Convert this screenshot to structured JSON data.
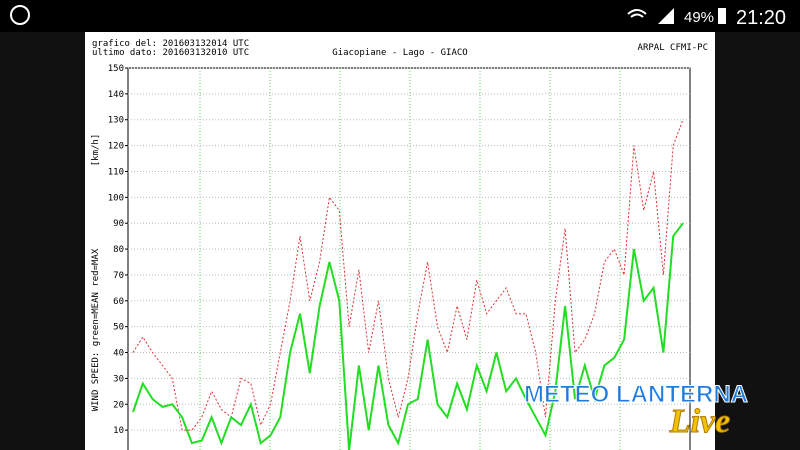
{
  "status_bar": {
    "battery": "49%",
    "time": "21:20"
  },
  "chart_header": {
    "plotted": "grafico del: 201603132014 UTC",
    "last_data": "ultimo dato: 201603132010 UTC",
    "source": "ARPAL CFMI-PC"
  },
  "watermark": {
    "brand": "METEO LANTERNA",
    "tag": "Live"
  },
  "chart_data": {
    "type": "line",
    "title": "Giacopiane - Lago - GIACO",
    "y_unit": "[km/h]",
    "y_label": "WIND SPEED: green=MEAN red=MAX",
    "categories": [
      null,
      null,
      null,
      null,
      null,
      null,
      null,
      null,
      null,
      null,
      null,
      null,
      null,
      null,
      null,
      null,
      null,
      null,
      null,
      null,
      null,
      null,
      null,
      null,
      null,
      null,
      null,
      null,
      null,
      null,
      null,
      null,
      null,
      null,
      null,
      null,
      null,
      null,
      null,
      null,
      null,
      null,
      null,
      null,
      null,
      null,
      null,
      null,
      null,
      null,
      null,
      null,
      null,
      null,
      null,
      null,
      null
    ],
    "series": [
      {
        "name": "MAX",
        "color": "#e03030",
        "dashed": true,
        "values": [
          40,
          46,
          40,
          35,
          30,
          10,
          10,
          15,
          25,
          18,
          15,
          30,
          28,
          12,
          20,
          40,
          60,
          85,
          60,
          75,
          100,
          95,
          50,
          72,
          40,
          60,
          30,
          15,
          30,
          55,
          75,
          50,
          40,
          58,
          45,
          68,
          55,
          60,
          65,
          55,
          55,
          40,
          15,
          60,
          88,
          40,
          45,
          55,
          75,
          80,
          70,
          120,
          95,
          110,
          70,
          120,
          130
        ]
      },
      {
        "name": "MEAN",
        "color": "#22dd22",
        "dashed": false,
        "values": [
          17,
          28,
          22,
          19,
          20,
          15,
          5,
          6,
          15,
          5,
          15,
          12,
          20,
          5,
          8,
          15,
          40,
          55,
          32,
          58,
          75,
          60,
          2,
          35,
          10,
          35,
          12,
          5,
          20,
          22,
          45,
          20,
          15,
          28,
          18,
          35,
          25,
          40,
          25,
          30,
          22,
          15,
          8,
          25,
          58,
          22,
          35,
          22,
          35,
          38,
          45,
          80,
          60,
          65,
          40,
          85,
          90
        ]
      }
    ],
    "ylim": [
      0,
      150
    ],
    "yticks": [
      10,
      20,
      30,
      40,
      50,
      60,
      70,
      80,
      90,
      100,
      110,
      120,
      130,
      140,
      150
    ],
    "grid": true
  }
}
